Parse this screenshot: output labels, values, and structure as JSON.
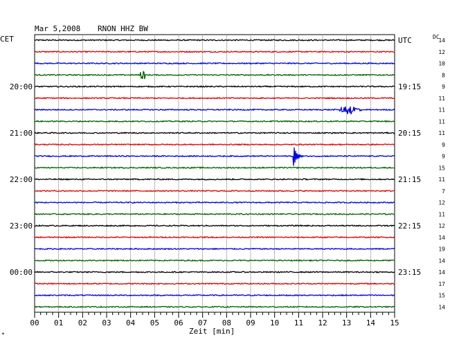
{
  "header": {
    "date": "Mar 5,2008",
    "station": "RNON HHZ BW",
    "left_zone": "CET",
    "right_zone": "UTC",
    "dc_label": "DC"
  },
  "chart_data": {
    "type": "line",
    "title": "Mar 5,2008   RNON HHZ BW",
    "xlabel": "Zeit [min]",
    "x_ticks": [
      "00",
      "01",
      "02",
      "03",
      "04",
      "05",
      "06",
      "07",
      "08",
      "09",
      "10",
      "11",
      "12",
      "13",
      "14",
      "15"
    ],
    "xlim": [
      0,
      15
    ],
    "grid": true,
    "trace_colors": [
      "#000000",
      "#e00000",
      "#0000e0",
      "#006400"
    ],
    "left_time_labels": [
      {
        "row": 4,
        "text": "20:00"
      },
      {
        "row": 8,
        "text": "21:00"
      },
      {
        "row": 12,
        "text": "22:00"
      },
      {
        "row": 16,
        "text": "23:00"
      },
      {
        "row": 20,
        "text": "00:00"
      }
    ],
    "right_time_labels": [
      {
        "row": 0,
        "text": "UTC"
      },
      {
        "row": 4,
        "text": "19:15"
      },
      {
        "row": 8,
        "text": "20:15"
      },
      {
        "row": 12,
        "text": "21:15"
      },
      {
        "row": 16,
        "text": "22:15"
      },
      {
        "row": 20,
        "text": "23:15"
      }
    ],
    "dc_offsets": [
      14,
      12,
      10,
      8,
      9,
      11,
      11,
      11,
      11,
      9,
      9,
      15,
      11,
      7,
      12,
      11,
      12,
      14,
      19,
      14,
      14,
      17,
      15,
      14
    ],
    "events": [
      {
        "row": 3,
        "minute": 4.5,
        "amplitude": 1.6,
        "duration_min": 0.1,
        "kind": "spike"
      },
      {
        "row": 6,
        "minute": 13.1,
        "amplitude": 1.8,
        "duration_min": 1.0,
        "kind": "burst"
      },
      {
        "row": 10,
        "minute": 10.8,
        "amplitude": 3.5,
        "duration_min": 0.4,
        "kind": "quake"
      }
    ]
  },
  "footer_mark": "*"
}
